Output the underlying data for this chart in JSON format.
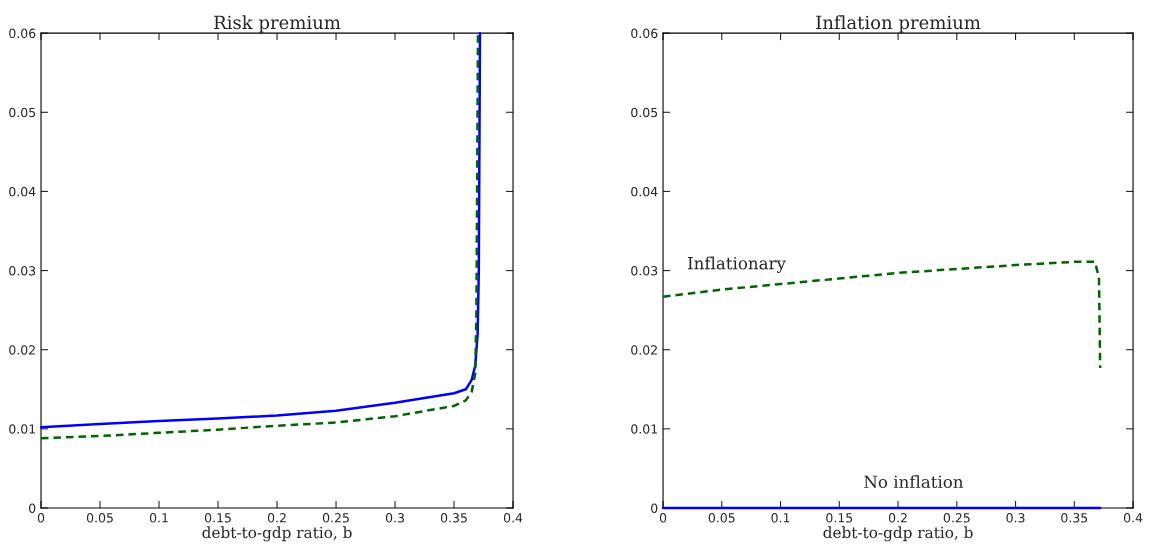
{
  "chart_data": [
    {
      "type": "line",
      "title": "Risk premium",
      "xlabel": "debt-to-gdp ratio, b",
      "xlim": [
        0,
        0.4
      ],
      "ylim": [
        0,
        0.06
      ],
      "xticks": [
        0,
        0.05,
        0.1,
        0.15,
        0.2,
        0.25,
        0.3,
        0.35,
        0.4
      ],
      "yticks": [
        0,
        0.01,
        0.02,
        0.03,
        0.04,
        0.05,
        0.06
      ],
      "grid": false,
      "series": [
        {
          "color": "#0000ff",
          "line_style": "solid",
          "x": [
            0,
            0.05,
            0.1,
            0.15,
            0.2,
            0.25,
            0.3,
            0.35,
            0.36,
            0.365,
            0.368,
            0.37,
            0.371,
            0.372
          ],
          "values": [
            0.0102,
            0.0106,
            0.011,
            0.0113,
            0.0117,
            0.0123,
            0.0133,
            0.0145,
            0.015,
            0.0162,
            0.018,
            0.022,
            0.03,
            0.06
          ]
        },
        {
          "color": "#006400",
          "line_style": "dashed",
          "x": [
            0,
            0.05,
            0.1,
            0.15,
            0.2,
            0.25,
            0.3,
            0.35,
            0.36,
            0.365,
            0.368,
            0.369,
            0.3703
          ],
          "values": [
            0.0088,
            0.0091,
            0.0095,
            0.0099,
            0.0104,
            0.0108,
            0.0116,
            0.0129,
            0.0136,
            0.0147,
            0.017,
            0.025,
            0.06
          ]
        }
      ]
    },
    {
      "type": "line",
      "title": "Inflation premium",
      "xlabel": "debt-to-gdp ratio, b",
      "xlim": [
        0,
        0.4
      ],
      "ylim": [
        0,
        0.06
      ],
      "xticks": [
        0,
        0.05,
        0.1,
        0.15,
        0.2,
        0.25,
        0.3,
        0.35,
        0.4
      ],
      "yticks": [
        0,
        0.01,
        0.02,
        0.03,
        0.04,
        0.05,
        0.06
      ],
      "grid": false,
      "series": [
        {
          "name": "Inflationary",
          "color": "#006400",
          "line_style": "dashed",
          "x": [
            0,
            0.05,
            0.1,
            0.15,
            0.2,
            0.25,
            0.3,
            0.35,
            0.3677,
            0.371,
            0.372
          ],
          "values": [
            0.0267,
            0.0276,
            0.0283,
            0.029,
            0.0297,
            0.0302,
            0.0307,
            0.0311,
            0.0311,
            0.029,
            0.0177
          ]
        },
        {
          "name": "No inflation",
          "color": "#0000ff",
          "line_style": "solid",
          "x": [
            0,
            0.1,
            0.2,
            0.3,
            0.372
          ],
          "values": [
            0,
            0,
            0,
            0,
            0
          ]
        }
      ]
    }
  ]
}
